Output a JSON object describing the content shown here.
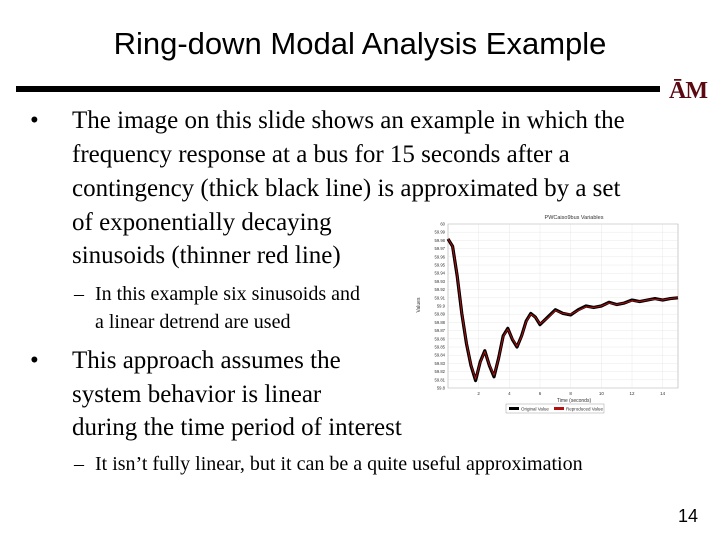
{
  "slide": {
    "title": "Ring-down Modal Analysis Example",
    "logo_text": "ĀM",
    "bullets": [
      {
        "lines": [
          "The image on this slide shows an example in which the",
          "frequency response at a bus for 15 seconds after a",
          "contingency (thick black line) is approximated by a set",
          "of exponentially decaying",
          "sinusoids (thinner red line)"
        ],
        "sub": [
          "In this example six sinusoids and",
          "a linear detrend are used"
        ]
      },
      {
        "lines": [
          "This approach assumes the",
          "system behavior is linear",
          "during the time period of interest"
        ],
        "sub": [
          "It isn’t fully linear, but it can be a quite useful approximation"
        ]
      }
    ],
    "page_number": "14"
  },
  "chart_data": {
    "type": "line",
    "title": "PWCaiso9bus Variables",
    "xlabel": "Time (seconds)",
    "ylabel": "Values",
    "xlim": [
      0,
      15
    ],
    "ylim": [
      59.8,
      60.02
    ],
    "x_ticks": [
      "2",
      "4",
      "6",
      "8",
      "10",
      "12",
      "14"
    ],
    "y_ticks": [
      "60",
      "59.99",
      "59.98",
      "59.97",
      "59.96",
      "59.95",
      "59.94",
      "59.93",
      "59.92",
      "59.91",
      "59.9",
      "59.89",
      "59.88",
      "59.87",
      "59.86",
      "59.85",
      "59.84",
      "59.83",
      "59.82",
      "59.81",
      "59.8"
    ],
    "legend": [
      "Original Value",
      "Reproduced Value"
    ],
    "colors": {
      "original": "#000000",
      "reproduced": "#b01010"
    },
    "series": [
      {
        "name": "Original Value",
        "x": [
          0,
          0.3,
          0.6,
          0.9,
          1.2,
          1.5,
          1.8,
          2.1,
          2.4,
          2.7,
          3.0,
          3.3,
          3.6,
          3.9,
          4.2,
          4.5,
          4.8,
          5.1,
          5.4,
          5.7,
          6.0,
          6.5,
          7.0,
          7.5,
          8.0,
          8.5,
          9.0,
          9.5,
          10.0,
          10.5,
          11.0,
          11.5,
          12.0,
          12.5,
          13.0,
          13.5,
          14.0,
          14.5,
          15.0
        ],
        "y": [
          60.0,
          59.99,
          59.95,
          59.9,
          59.86,
          59.83,
          59.81,
          59.835,
          59.85,
          59.83,
          59.815,
          59.84,
          59.87,
          59.88,
          59.865,
          59.855,
          59.87,
          59.89,
          59.9,
          59.895,
          59.885,
          59.895,
          59.905,
          59.9,
          59.898,
          59.905,
          59.91,
          59.908,
          59.91,
          59.915,
          59.912,
          59.914,
          59.918,
          59.916,
          59.918,
          59.92,
          59.918,
          59.92,
          59.921
        ]
      },
      {
        "name": "Reproduced Value",
        "x": [
          0,
          0.3,
          0.6,
          0.9,
          1.2,
          1.5,
          1.8,
          2.1,
          2.4,
          2.7,
          3.0,
          3.3,
          3.6,
          3.9,
          4.2,
          4.5,
          4.8,
          5.1,
          5.4,
          5.7,
          6.0,
          6.5,
          7.0,
          7.5,
          8.0,
          8.5,
          9.0,
          9.5,
          10.0,
          10.5,
          11.0,
          11.5,
          12.0,
          12.5,
          13.0,
          13.5,
          14.0,
          14.5,
          15.0
        ],
        "y": [
          60.0,
          59.99,
          59.951,
          59.901,
          59.861,
          59.831,
          59.812,
          59.834,
          59.849,
          59.831,
          59.817,
          59.839,
          59.869,
          59.879,
          59.866,
          59.856,
          59.869,
          59.889,
          59.899,
          59.895,
          59.886,
          59.894,
          59.904,
          59.9,
          59.899,
          59.904,
          59.909,
          59.908,
          59.91,
          59.914,
          59.912,
          59.914,
          59.917,
          59.916,
          59.918,
          59.919,
          59.918,
          59.92,
          59.921
        ]
      }
    ]
  }
}
